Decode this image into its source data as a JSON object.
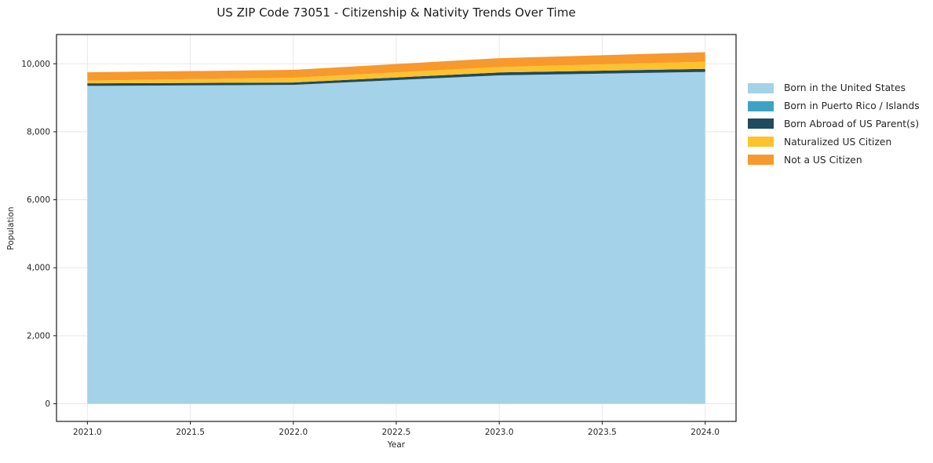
{
  "figure": {
    "title": "US ZIP Code 73051 - Citizenship & Nativity Trends Over Time"
  },
  "chart_data": {
    "type": "area",
    "stacked": true,
    "title": "US ZIP Code 73051 - Citizenship & Nativity Trends Over Time",
    "xlabel": "Year",
    "ylabel": "Population",
    "x": [
      2021,
      2022,
      2023,
      2024
    ],
    "series": [
      {
        "name": "Born in the United States",
        "color": "#a4d2e8",
        "values": [
          9350,
          9380,
          9660,
          9760
        ]
      },
      {
        "name": "Born in Puerto Rico / Islands",
        "color": "#3ea3c3",
        "values": [
          0,
          0,
          0,
          0
        ]
      },
      {
        "name": "Born Abroad of US Parent(s)",
        "color": "#1f4a5f",
        "values": [
          75,
          70,
          85,
          90
        ]
      },
      {
        "name": "Naturalized US Citizen",
        "color": "#fdc22c",
        "values": [
          80,
          140,
          160,
          210
        ]
      },
      {
        "name": "Not a US Citizen",
        "color": "#f7992d",
        "values": [
          245,
          230,
          260,
          280
        ]
      }
    ],
    "totals": [
      9750,
      9820,
      10165,
      10340
    ],
    "xlim": [
      2020.85,
      2024.15
    ],
    "ylim": [
      -520,
      10860
    ],
    "xtick_values": [
      2021,
      2021.5,
      2022,
      2022.5,
      2023,
      2023.5,
      2024
    ],
    "xtick_labels": [
      "2021.0",
      "2021.5",
      "2022.0",
      "2022.5",
      "2023.0",
      "2023.5",
      "2024.0"
    ],
    "ytick_values": [
      0,
      2000,
      4000,
      6000,
      8000,
      10000
    ],
    "ytick_labels": [
      "0",
      "2,000",
      "4,000",
      "6,000",
      "8,000",
      "10,000"
    ],
    "grid": true,
    "legend_position": "center right outside",
    "colors": {
      "gridline": "#e8e8e8",
      "spine": "#1a1a1a",
      "tick_label": "#262626",
      "background": "#ffffff"
    }
  }
}
